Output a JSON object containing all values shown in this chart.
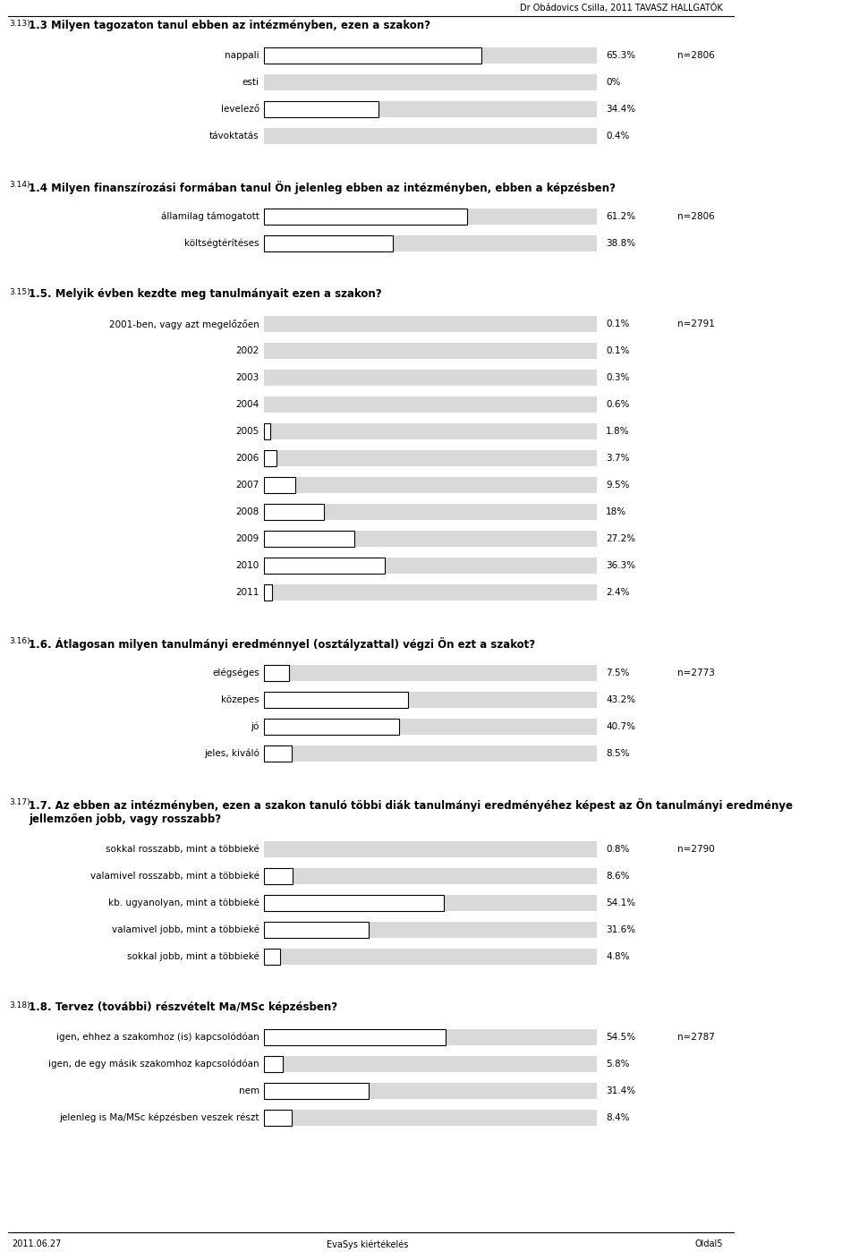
{
  "header_text": "Dr Obádovics Csilla, 2011 TAVASZ HALLGATÓK",
  "footer_left": "2011.06.27",
  "footer_center": "EvaSys kiértékelés",
  "footer_right": "Oldal5",
  "background_color": "#ffffff",
  "bar_bg_color": "#d9d9d9",
  "bar_fg_color": "#ffffff",
  "bar_border_color": "#000000",
  "max_bar_width": 0.65,
  "sections": [
    {
      "section_num": "3.13)",
      "title": "1.3 Milyen tagozaton tanul ebben az intézményben, ezen a szakon?",
      "n_label": "n=2806",
      "n_row": 0,
      "items": [
        {
          "label": "nappali",
          "value": 65.3,
          "pct_text": "65.3%",
          "has_box": true
        },
        {
          "label": "esti",
          "value": 0.0,
          "pct_text": "0%",
          "has_box": false
        },
        {
          "label": "levelező",
          "value": 34.4,
          "pct_text": "34.4%",
          "has_box": true
        },
        {
          "label": "távoktatás",
          "value": 0.4,
          "pct_text": "0.4%",
          "has_box": false
        }
      ]
    },
    {
      "section_num": "3.14)",
      "title": "1.4 Milyen finanszírozási formában tanul Ön jelenleg ebben az intézményben, ebben a képzésben?",
      "n_label": "n=2806",
      "n_row": 0,
      "items": [
        {
          "label": "államilag támogatott",
          "value": 61.2,
          "pct_text": "61.2%",
          "has_box": true
        },
        {
          "label": "költségtérítéses",
          "value": 38.8,
          "pct_text": "38.8%",
          "has_box": true
        }
      ]
    },
    {
      "section_num": "3.15)",
      "title": "1.5. Melyik évben kezdte meg tanulmányait ezen a szakon?",
      "n_label": "n=2791",
      "n_row": 0,
      "items": [
        {
          "label": "2001-ben, vagy azt megelőzően",
          "value": 0.1,
          "pct_text": "0.1%",
          "has_box": false
        },
        {
          "label": "2002",
          "value": 0.1,
          "pct_text": "0.1%",
          "has_box": false
        },
        {
          "label": "2003",
          "value": 0.3,
          "pct_text": "0.3%",
          "has_box": false
        },
        {
          "label": "2004",
          "value": 0.6,
          "pct_text": "0.6%",
          "has_box": false
        },
        {
          "label": "2005",
          "value": 1.8,
          "pct_text": "1.8%",
          "has_box": true
        },
        {
          "label": "2006",
          "value": 3.7,
          "pct_text": "3.7%",
          "has_box": true
        },
        {
          "label": "2007",
          "value": 9.5,
          "pct_text": "9.5%",
          "has_box": true
        },
        {
          "label": "2008",
          "value": 18.0,
          "pct_text": "18%",
          "has_box": true
        },
        {
          "label": "2009",
          "value": 27.2,
          "pct_text": "27.2%",
          "has_box": true
        },
        {
          "label": "2010",
          "value": 36.3,
          "pct_text": "36.3%",
          "has_box": true
        },
        {
          "label": "2011",
          "value": 2.4,
          "pct_text": "2.4%",
          "has_box": true
        }
      ]
    },
    {
      "section_num": "3.16)",
      "title": "1.6. Átlagosan milyen tanulmányi eredménnyel (osztályzattal) végzi Ön ezt a szakot?",
      "n_label": "n=2773",
      "n_row": 0,
      "items": [
        {
          "label": "elégséges",
          "value": 7.5,
          "pct_text": "7.5%",
          "has_box": true
        },
        {
          "label": "közepes",
          "value": 43.2,
          "pct_text": "43.2%",
          "has_box": true
        },
        {
          "label": "jó",
          "value": 40.7,
          "pct_text": "40.7%",
          "has_box": true
        },
        {
          "label": "jeles, kiváló",
          "value": 8.5,
          "pct_text": "8.5%",
          "has_box": true
        }
      ]
    },
    {
      "section_num": "3.17)",
      "title": "1.7. Az ebben az intézményben, ezen a szakon tanuló többi diák tanulmányi eredményéhez képest az Ön tanulmányi eredménye\njellemzően jobb, vagy rosszabb?",
      "n_label": "n=2790",
      "n_row": 0,
      "items": [
        {
          "label": "sokkal rosszabb, mint a többieké",
          "value": 0.8,
          "pct_text": "0.8%",
          "has_box": false
        },
        {
          "label": "valamivel rosszabb, mint a többieké",
          "value": 8.6,
          "pct_text": "8.6%",
          "has_box": true
        },
        {
          "label": "kb. ugyanolyan, mint a többieké",
          "value": 54.1,
          "pct_text": "54.1%",
          "has_box": true
        },
        {
          "label": "valamivel jobb, mint a többieké",
          "value": 31.6,
          "pct_text": "31.6%",
          "has_box": true
        },
        {
          "label": "sokkal jobb, mint a többieké",
          "value": 4.8,
          "pct_text": "4.8%",
          "has_box": true
        }
      ]
    },
    {
      "section_num": "3.18)",
      "title": "1.8. Tervez (további) részvételt Ma/MSc képzésben?",
      "n_label": "n=2787",
      "n_row": 0,
      "items": [
        {
          "label": "igen, ehhez a szakomhoz (is) kapcsolódóan",
          "value": 54.5,
          "pct_text": "54.5%",
          "has_box": true
        },
        {
          "label": "igen, de egy másik szakomhoz kapcsolódóan",
          "value": 5.8,
          "pct_text": "5.8%",
          "has_box": true
        },
        {
          "label": "nem",
          "value": 31.4,
          "pct_text": "31.4%",
          "has_box": true
        },
        {
          "label": "jelenleg is Ma/MSc képzésben veszek részt",
          "value": 8.4,
          "pct_text": "8.4%",
          "has_box": true
        }
      ]
    }
  ]
}
